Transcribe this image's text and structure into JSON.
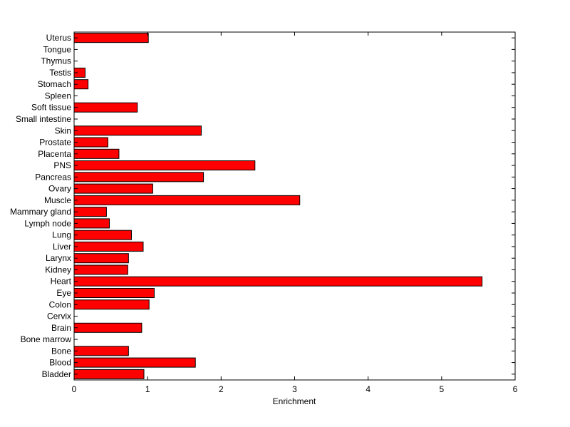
{
  "chart_data": {
    "type": "bar",
    "orientation": "horizontal",
    "categories": [
      "Bladder",
      "Blood",
      "Bone",
      "Bone marrow",
      "Brain",
      "Cervix",
      "Colon",
      "Eye",
      "Heart",
      "Kidney",
      "Larynx",
      "Liver",
      "Lung",
      "Lymph node",
      "Mammary gland",
      "Muscle",
      "Ovary",
      "Pancreas",
      "PNS",
      "Placenta",
      "Prostate",
      "Skin",
      "Small intestine",
      "Soft tissue",
      "Spleen",
      "Stomach",
      "Testis",
      "Thymus",
      "Tongue",
      "Uterus"
    ],
    "values": [
      0.95,
      1.65,
      0.74,
      0,
      0.92,
      0,
      1.02,
      1.09,
      5.55,
      0.73,
      0.74,
      0.94,
      0.78,
      0.48,
      0.44,
      3.07,
      1.07,
      1.76,
      2.46,
      0.61,
      0.46,
      1.73,
      0,
      0.86,
      0,
      0.19,
      0.15,
      0,
      0,
      1.01
    ],
    "xlabel": "Enrichment",
    "ylabel": "",
    "xlim": [
      0,
      6
    ],
    "xticks": [
      0,
      1,
      2,
      3,
      4,
      5,
      6
    ],
    "grid": false,
    "bar_color": "#ff0000",
    "edge_color": "#000000"
  }
}
